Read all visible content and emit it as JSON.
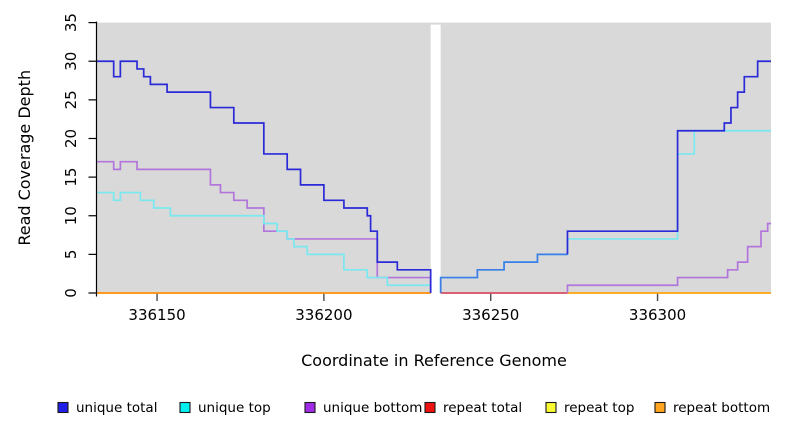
{
  "chart_data": {
    "type": "line",
    "title": "",
    "xlabel": "Coordinate in Reference Genome",
    "ylabel": "Read Coverage Depth",
    "xlim": [
      336132,
      336334
    ],
    "ylim": [
      0,
      35
    ],
    "x_ticks": [
      336150,
      336200,
      336250,
      336300
    ],
    "y_ticks": [
      0,
      5,
      10,
      15,
      20,
      25,
      30,
      35
    ],
    "plot_bg": "#d9d9d9",
    "grid": "off",
    "legend_position": "bottom",
    "gap": {
      "from": 336232,
      "to": 336235
    },
    "legend": [
      {
        "label": "unique total",
        "color": "#1f1fe8"
      },
      {
        "label": "unique top",
        "color": "#00f0f0"
      },
      {
        "label": "unique bottom",
        "color": "#a12ce8"
      },
      {
        "label": "repeat total",
        "color": "#ee1111"
      },
      {
        "label": "repeat top",
        "color": "#fafa32"
      },
      {
        "label": "repeat bottom",
        "color": "#ffa520"
      }
    ],
    "series": [
      {
        "name": "repeat-top-left",
        "legend": "repeat top",
        "color": "#f5e626",
        "steps": [
          [
            336132,
            0
          ]
        ],
        "end": 336232
      },
      {
        "name": "repeat-total-left",
        "legend": "repeat total",
        "color": "#e02020",
        "steps": [
          [
            336132,
            0
          ]
        ],
        "end": 336232
      },
      {
        "name": "repeat-bottom-left",
        "legend": "repeat bottom",
        "color": "#ffa520",
        "steps": [
          [
            336132,
            0
          ]
        ],
        "end": 336232
      },
      {
        "name": "repeat-top-right",
        "legend": "repeat top",
        "color": "#f5e626",
        "steps": [
          [
            336235,
            0
          ]
        ],
        "end": 336334
      },
      {
        "name": "repeat-bottom-right",
        "legend": "repeat bottom",
        "color": "#ffa520",
        "steps": [
          [
            336235,
            0
          ]
        ],
        "end": 336334
      },
      {
        "name": "repeat-total-right-visible",
        "legend": "repeat total",
        "color": "#d4547e",
        "steps": [
          [
            336235,
            0
          ]
        ],
        "end": 336273
      },
      {
        "name": "unique-bottom-left",
        "legend": "unique bottom",
        "color": "#b275dc",
        "steps": [
          [
            336132,
            17
          ],
          [
            336137,
            16
          ],
          [
            336139,
            17
          ],
          [
            336144,
            16
          ],
          [
            336166,
            14
          ],
          [
            336169,
            13
          ],
          [
            336173,
            12
          ],
          [
            336177,
            11
          ],
          [
            336182,
            8
          ],
          [
            336189,
            7
          ],
          [
            336216,
            2
          ]
        ],
        "end": 336232,
        "exitTo": 0
      },
      {
        "name": "unique-bottom-right",
        "legend": "unique bottom",
        "color": "#b275dc",
        "enterFrom": 0,
        "steps": [
          [
            336273,
            1
          ],
          [
            336306,
            2
          ],
          [
            336321,
            3
          ],
          [
            336324,
            4
          ],
          [
            336327,
            6
          ],
          [
            336331,
            8
          ],
          [
            336333,
            9
          ]
        ],
        "end": 336334
      },
      {
        "name": "unique-top-left",
        "legend": "unique top",
        "color": "#79e8ef",
        "steps": [
          [
            336132,
            13
          ],
          [
            336137,
            12
          ],
          [
            336139,
            13
          ],
          [
            336145,
            12
          ],
          [
            336149,
            11
          ],
          [
            336154,
            10
          ],
          [
            336182,
            9
          ],
          [
            336186,
            8
          ],
          [
            336189,
            7
          ],
          [
            336191,
            6
          ],
          [
            336195,
            5
          ],
          [
            336206,
            3
          ],
          [
            336213,
            2
          ],
          [
            336219,
            1
          ]
        ],
        "end": 336232,
        "exitTo": 0
      },
      {
        "name": "unique-top-right",
        "legend": "unique top",
        "color": "#79e8ef",
        "enterFrom": 0,
        "steps": [
          [
            336235,
            2
          ],
          [
            336246,
            3
          ],
          [
            336254,
            4
          ],
          [
            336264,
            5
          ],
          [
            336273,
            7
          ],
          [
            336306,
            18
          ],
          [
            336311,
            21
          ]
        ],
        "end": 336334
      },
      {
        "name": "unique-total-left",
        "legend": "unique total",
        "color": "#2a2ad8",
        "steps": [
          [
            336132,
            30
          ],
          [
            336137,
            28
          ],
          [
            336139,
            30
          ],
          [
            336144,
            29
          ],
          [
            336146,
            28
          ],
          [
            336148,
            27
          ],
          [
            336153,
            26
          ],
          [
            336166,
            24
          ],
          [
            336173,
            22
          ],
          [
            336182,
            18
          ],
          [
            336189,
            16
          ],
          [
            336193,
            14
          ],
          [
            336200,
            12
          ],
          [
            336206,
            11
          ],
          [
            336213,
            10
          ],
          [
            336214,
            8
          ],
          [
            336216,
            4
          ],
          [
            336222,
            3
          ]
        ],
        "end": 336232,
        "exitTo": 0
      },
      {
        "name": "unique-total-right-overlap-top",
        "legend": "unique total",
        "color": "#3e7de8",
        "enterFrom": 0,
        "steps": [
          [
            336235,
            2
          ],
          [
            336246,
            3
          ],
          [
            336254,
            4
          ],
          [
            336264,
            5
          ]
        ],
        "end": 336273
      },
      {
        "name": "unique-total-right",
        "legend": "unique total",
        "color": "#2a2ad8",
        "enterFrom": 5,
        "steps": [
          [
            336273,
            8
          ],
          [
            336306,
            21
          ],
          [
            336320,
            22
          ],
          [
            336322,
            24
          ],
          [
            336324,
            26
          ],
          [
            336326,
            28
          ],
          [
            336330,
            30
          ]
        ],
        "end": 336334
      }
    ]
  }
}
